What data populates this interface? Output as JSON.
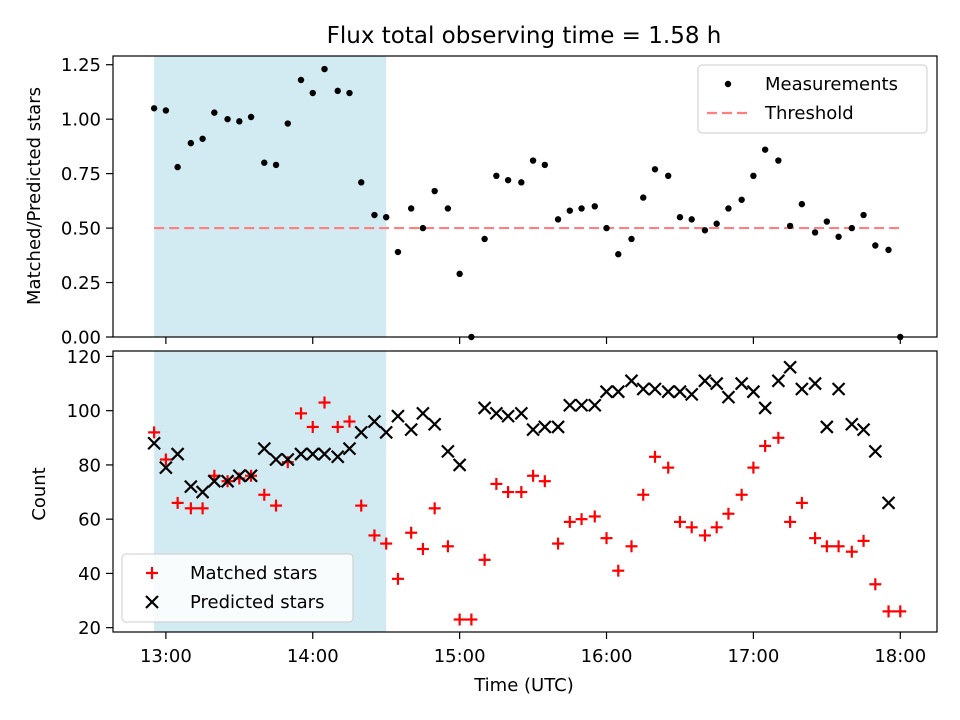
{
  "chart_data": {
    "title": "Flux total observing time = 1.58 h",
    "xlabel": "Time (UTC)",
    "x_ticks": [
      {
        "value": 13,
        "label": "13:00"
      },
      {
        "value": 14,
        "label": "14:00"
      },
      {
        "value": 15,
        "label": "15:00"
      },
      {
        "value": 16,
        "label": "16:00"
      },
      {
        "value": 17,
        "label": "17:00"
      },
      {
        "value": 18,
        "label": "18:00"
      }
    ],
    "xlim": [
      12.64,
      18.25
    ],
    "x_unit": "hour of day (UTC)",
    "shaded_span": [
      12.92,
      14.5
    ],
    "shade_color": "#add8e6",
    "panels": [
      {
        "type": "scatter",
        "ylabel": "Matched/Predicted stars",
        "ylim": [
          0,
          1.29
        ],
        "y_ticks": [
          "0.00",
          "0.25",
          "0.50",
          "0.75",
          "1.00",
          "1.25"
        ],
        "y_tick_values": [
          0,
          0.25,
          0.5,
          0.75,
          1.0,
          1.25
        ],
        "legend_position": "top-right",
        "threshold": {
          "name": "Threshold",
          "value": 0.5,
          "color": "#ff7f7f",
          "style": "dashed"
        },
        "series": [
          {
            "name": "Measurements",
            "marker": "dot",
            "color": "#000000",
            "x": [
              12.92,
              13.0,
              13.08,
              13.17,
              13.25,
              13.33,
              13.42,
              13.5,
              13.58,
              13.67,
              13.75,
              13.83,
              13.92,
              14.0,
              14.08,
              14.17,
              14.25,
              14.33,
              14.42,
              14.5,
              14.58,
              14.67,
              14.75,
              14.83,
              14.92,
              15.0,
              15.08,
              15.17,
              15.25,
              15.33,
              15.42,
              15.5,
              15.58,
              15.67,
              15.75,
              15.83,
              15.92,
              16.0,
              16.08,
              16.17,
              16.25,
              16.33,
              16.42,
              16.5,
              16.58,
              16.67,
              16.75,
              16.83,
              16.92,
              17.0,
              17.08,
              17.17,
              17.25,
              17.33,
              17.42,
              17.5,
              17.58,
              17.67,
              17.75,
              17.83,
              17.92,
              18.0
            ],
            "y": [
              1.05,
              1.04,
              0.78,
              0.89,
              0.91,
              1.03,
              1.0,
              0.99,
              1.01,
              0.8,
              0.79,
              0.98,
              1.18,
              1.12,
              1.23,
              1.13,
              1.12,
              0.71,
              0.56,
              0.55,
              0.39,
              0.59,
              0.5,
              0.67,
              0.59,
              0.29,
              0.0,
              0.45,
              0.74,
              0.72,
              0.71,
              0.81,
              0.79,
              0.54,
              0.58,
              0.59,
              0.6,
              0.5,
              0.38,
              0.45,
              0.64,
              0.77,
              0.74,
              0.55,
              0.54,
              0.49,
              0.52,
              0.59,
              0.63,
              0.74,
              0.86,
              0.81,
              0.51,
              0.61,
              0.48,
              0.53,
              0.46,
              0.5,
              0.56,
              0.42,
              0.4,
              0.0
            ]
          }
        ]
      },
      {
        "type": "scatter",
        "ylabel": "Count",
        "ylim": [
          18.4,
          122
        ],
        "y_ticks": [
          "20",
          "40",
          "60",
          "80",
          "100",
          "120"
        ],
        "y_tick_values": [
          20,
          40,
          60,
          80,
          100,
          120
        ],
        "legend_position": "bottom-left",
        "series": [
          {
            "name": "Matched stars",
            "marker": "plus",
            "color": "#ff0000",
            "x": [
              12.92,
              13.0,
              13.08,
              13.17,
              13.25,
              13.33,
              13.42,
              13.5,
              13.58,
              13.67,
              13.75,
              13.83,
              13.92,
              14.0,
              14.08,
              14.17,
              14.25,
              14.33,
              14.42,
              14.5,
              14.58,
              14.67,
              14.75,
              14.83,
              14.92,
              15.0,
              15.08,
              15.17,
              15.25,
              15.33,
              15.42,
              15.5,
              15.58,
              15.67,
              15.75,
              15.83,
              15.92,
              16.0,
              16.08,
              16.17,
              16.25,
              16.33,
              16.42,
              16.5,
              16.58,
              16.67,
              16.75,
              16.83,
              16.92,
              17.0,
              17.08,
              17.17,
              17.25,
              17.33,
              17.42,
              17.5,
              17.58,
              17.67,
              17.75,
              17.83,
              17.92,
              18.0
            ],
            "y": [
              92,
              82,
              66,
              64,
              64,
              76,
              74,
              75,
              76,
              69,
              65,
              81,
              99,
              94,
              103,
              94,
              96,
              65,
              54,
              51,
              38,
              55,
              49,
              64,
              50,
              23,
              23,
              45,
              73,
              70,
              70,
              76,
              74,
              51,
              59,
              60,
              61,
              53,
              41,
              50,
              69,
              83,
              79,
              59,
              57,
              54,
              57,
              62,
              69,
              79,
              87,
              90,
              59,
              66,
              53,
              50,
              50,
              48,
              52,
              36,
              26,
              26
            ]
          },
          {
            "name": "Predicted stars",
            "marker": "x",
            "color": "#000000",
            "x": [
              12.92,
              13.0,
              13.08,
              13.17,
              13.25,
              13.33,
              13.42,
              13.5,
              13.58,
              13.67,
              13.75,
              13.83,
              13.92,
              14.0,
              14.08,
              14.17,
              14.25,
              14.33,
              14.42,
              14.5,
              14.58,
              14.67,
              14.75,
              14.83,
              14.92,
              15.0,
              15.17,
              15.25,
              15.33,
              15.42,
              15.5,
              15.58,
              15.67,
              15.75,
              15.83,
              15.92,
              16.0,
              16.08,
              16.17,
              16.25,
              16.33,
              16.42,
              16.5,
              16.58,
              16.67,
              16.75,
              16.83,
              16.92,
              17.0,
              17.08,
              17.17,
              17.25,
              17.33,
              17.42,
              17.5,
              17.58,
              17.67,
              17.75,
              17.83,
              17.92
            ],
            "y": [
              88,
              79,
              84,
              72,
              70,
              74,
              74,
              76,
              76,
              86,
              82,
              82,
              84,
              84,
              84,
              83,
              86,
              92,
              96,
              92,
              98,
              93,
              99,
              95,
              85,
              80,
              101,
              99,
              98,
              99,
              93,
              94,
              94,
              102,
              102,
              102,
              107,
              107,
              111,
              108,
              108,
              107,
              107,
              106,
              111,
              110,
              105,
              110,
              107,
              101,
              111,
              116,
              108,
              110,
              94,
              108,
              95,
              93,
              85,
              66
            ]
          }
        ]
      }
    ]
  }
}
